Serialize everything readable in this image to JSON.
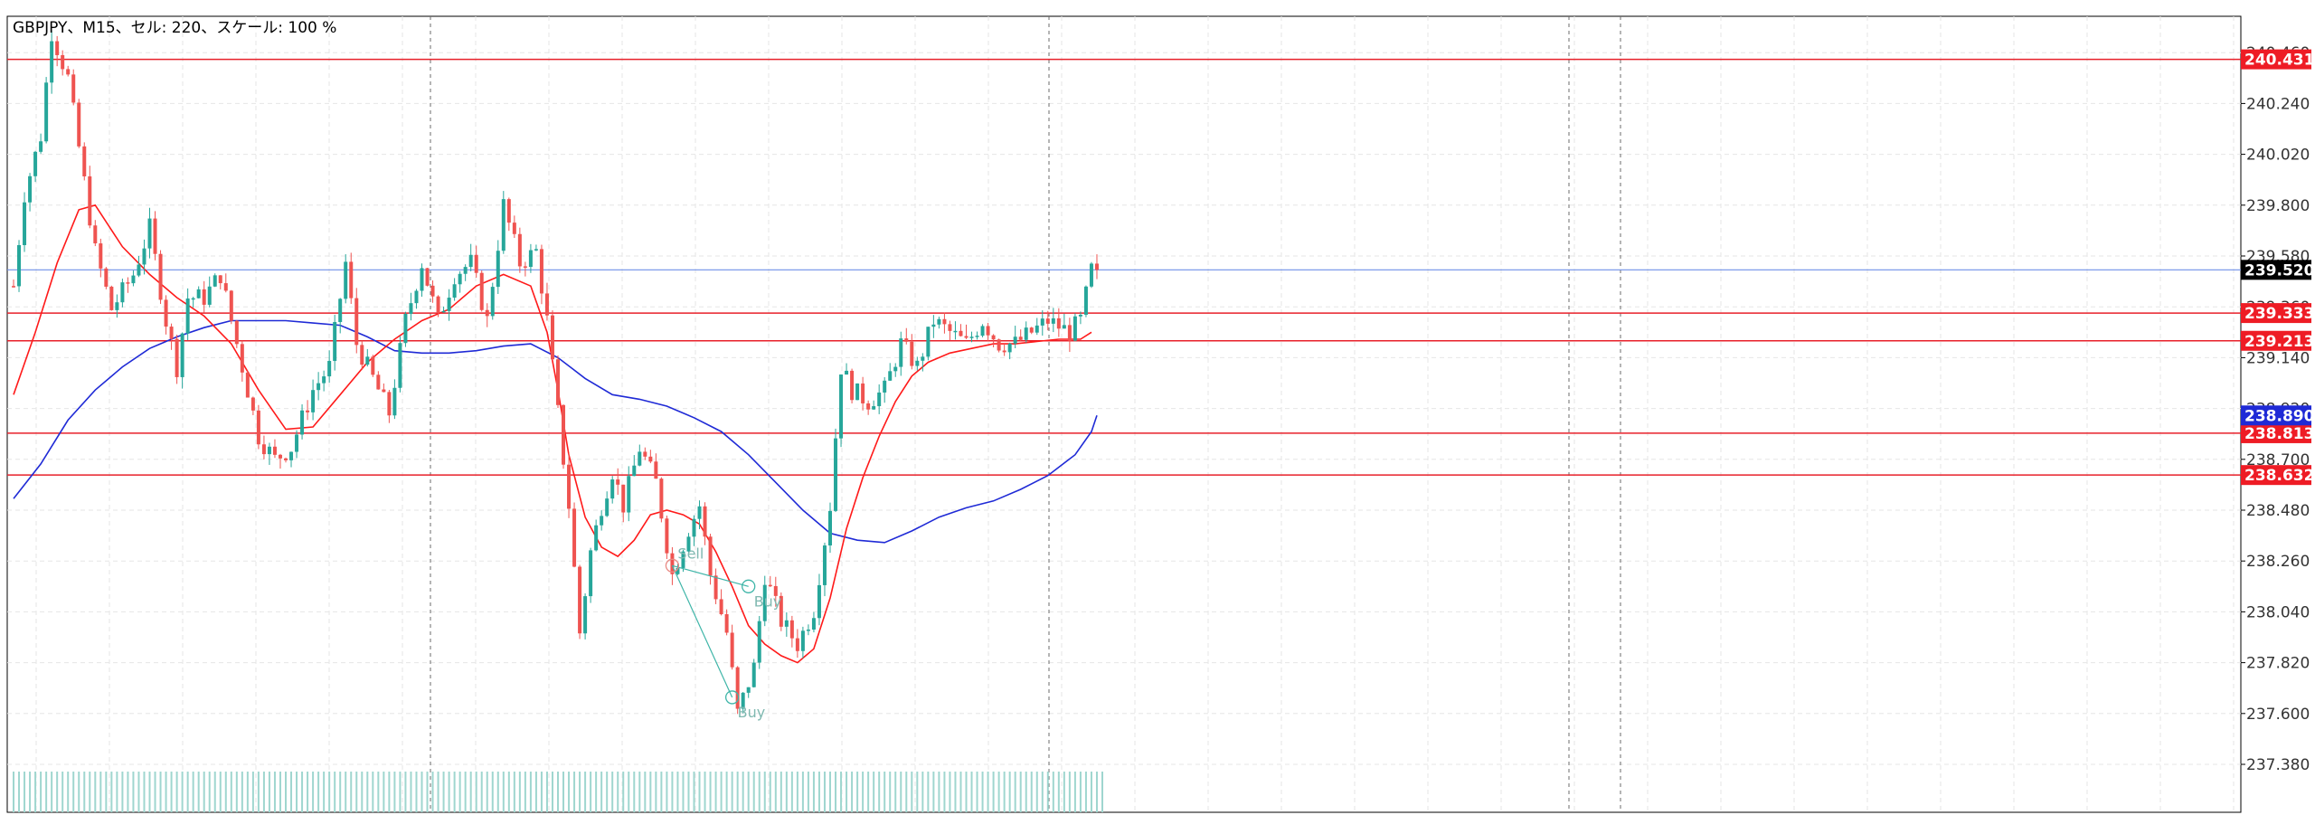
{
  "header": {
    "title": "GBPJPY、M15、セル: 220、スケール: 100 %"
  },
  "colors": {
    "bull": "#26a69a",
    "bear": "#ef5350",
    "ma_fast": "#ff1a1a",
    "ma_slow": "#1f2ad6",
    "hline": "#e8202a",
    "bid_line": "#6f8fe8",
    "grid": "#e6e6e6",
    "separator": "#6b6b6b",
    "volume": "#9fd6cf",
    "trade_line": "#3fb5a8"
  },
  "chart_data": {
    "type": "candlestick",
    "symbol": "GBPJPY",
    "timeframe": "M15",
    "ylim": [
      237.28,
      240.5
    ],
    "y_ticks": [
      "240.460",
      "240.240",
      "240.020",
      "239.800",
      "239.580",
      "239.360",
      "239.140",
      "238.920",
      "238.700",
      "238.480",
      "238.260",
      "238.040",
      "237.820",
      "237.600",
      "237.380"
    ],
    "horizontal_levels": [
      {
        "label": "240.431",
        "value": 240.431,
        "color": "#e8202a"
      },
      {
        "label": "239.333",
        "value": 239.333,
        "color": "#e8202a"
      },
      {
        "label": "239.213",
        "value": 239.213,
        "color": "#e8202a"
      },
      {
        "label": "238.813",
        "value": 238.813,
        "color": "#e8202a"
      },
      {
        "label": "238.632",
        "value": 238.632,
        "color": "#e8202a"
      }
    ],
    "bid": {
      "label": "239.520",
      "value": 239.52
    },
    "ma_slow_last": {
      "label": "238.890",
      "value": 238.89
    },
    "trades": [
      {
        "label": "Sell",
        "bar": 121,
        "price": 238.24
      },
      {
        "label": "Buy",
        "bar": 135,
        "price": 238.15
      },
      {
        "label": "Buy",
        "bar": 132,
        "price": 237.67
      }
    ],
    "anchors": [
      [
        0,
        239.45
      ],
      [
        2,
        239.85
      ],
      [
        5,
        240.1
      ],
      [
        7,
        240.55
      ],
      [
        10,
        240.35
      ],
      [
        12,
        240.05
      ],
      [
        15,
        239.6
      ],
      [
        18,
        239.35
      ],
      [
        22,
        239.5
      ],
      [
        25,
        239.7
      ],
      [
        28,
        239.3
      ],
      [
        30,
        239.1
      ],
      [
        32,
        239.4
      ],
      [
        35,
        239.4
      ],
      [
        38,
        239.5
      ],
      [
        42,
        239.1
      ],
      [
        45,
        238.8
      ],
      [
        48,
        238.7
      ],
      [
        51,
        238.75
      ],
      [
        55,
        239.0
      ],
      [
        58,
        239.1
      ],
      [
        61,
        239.55
      ],
      [
        63,
        239.2
      ],
      [
        66,
        239.05
      ],
      [
        69,
        238.9
      ],
      [
        72,
        239.3
      ],
      [
        75,
        239.55
      ],
      [
        78,
        239.3
      ],
      [
        81,
        239.5
      ],
      [
        84,
        239.55
      ],
      [
        87,
        239.3
      ],
      [
        90,
        239.8
      ],
      [
        93,
        239.55
      ],
      [
        96,
        239.6
      ],
      [
        98,
        239.3
      ],
      [
        100,
        238.9
      ],
      [
        102,
        238.5
      ],
      [
        104,
        237.95
      ],
      [
        106,
        238.3
      ],
      [
        108,
        238.5
      ],
      [
        110,
        238.65
      ],
      [
        112,
        238.5
      ],
      [
        115,
        238.75
      ],
      [
        118,
        238.6
      ],
      [
        121,
        238.2
      ],
      [
        124,
        238.4
      ],
      [
        126,
        238.5
      ],
      [
        128,
        238.2
      ],
      [
        131,
        237.95
      ],
      [
        133,
        237.6
      ],
      [
        136,
        237.8
      ],
      [
        138,
        238.2
      ],
      [
        141,
        238.0
      ],
      [
        144,
        237.9
      ],
      [
        147,
        238.05
      ],
      [
        150,
        238.5
      ],
      [
        152,
        239.1
      ],
      [
        154,
        239.0
      ],
      [
        157,
        238.95
      ],
      [
        160,
        239.0
      ],
      [
        163,
        239.2
      ],
      [
        166,
        239.1
      ],
      [
        169,
        239.3
      ],
      [
        172,
        239.25
      ],
      [
        175,
        239.2
      ],
      [
        178,
        239.3
      ],
      [
        181,
        239.2
      ],
      [
        184,
        239.2
      ],
      [
        187,
        239.25
      ],
      [
        190,
        239.3
      ],
      [
        194,
        239.25
      ],
      [
        196,
        239.3
      ],
      [
        198,
        239.52
      ]
    ],
    "ma_fast": [
      [
        0,
        238.98
      ],
      [
        4,
        239.25
      ],
      [
        8,
        239.55
      ],
      [
        12,
        239.78
      ],
      [
        15,
        239.8
      ],
      [
        20,
        239.62
      ],
      [
        25,
        239.5
      ],
      [
        30,
        239.4
      ],
      [
        35,
        239.32
      ],
      [
        40,
        239.2
      ],
      [
        45,
        239.0
      ],
      [
        50,
        238.83
      ],
      [
        55,
        238.84
      ],
      [
        60,
        238.98
      ],
      [
        65,
        239.12
      ],
      [
        70,
        239.22
      ],
      [
        75,
        239.3
      ],
      [
        80,
        239.35
      ],
      [
        85,
        239.45
      ],
      [
        90,
        239.5
      ],
      [
        95,
        239.45
      ],
      [
        98,
        239.25
      ],
      [
        100,
        239.0
      ],
      [
        102,
        238.72
      ],
      [
        105,
        238.45
      ],
      [
        108,
        238.32
      ],
      [
        111,
        238.28
      ],
      [
        114,
        238.35
      ],
      [
        117,
        238.46
      ],
      [
        120,
        238.48
      ],
      [
        123,
        238.46
      ],
      [
        126,
        238.42
      ],
      [
        129,
        238.3
      ],
      [
        132,
        238.15
      ],
      [
        135,
        237.98
      ],
      [
        138,
        237.9
      ],
      [
        141,
        237.85
      ],
      [
        144,
        237.82
      ],
      [
        147,
        237.88
      ],
      [
        150,
        238.1
      ],
      [
        153,
        238.4
      ],
      [
        156,
        238.62
      ],
      [
        159,
        238.8
      ],
      [
        162,
        238.95
      ],
      [
        165,
        239.06
      ],
      [
        168,
        239.12
      ],
      [
        172,
        239.16
      ],
      [
        176,
        239.18
      ],
      [
        180,
        239.2
      ],
      [
        184,
        239.2
      ],
      [
        188,
        239.21
      ],
      [
        192,
        239.22
      ],
      [
        196,
        239.22
      ],
      [
        198,
        239.25
      ]
    ],
    "ma_slow": [
      [
        0,
        238.53
      ],
      [
        5,
        238.68
      ],
      [
        10,
        238.87
      ],
      [
        15,
        239.0
      ],
      [
        20,
        239.1
      ],
      [
        25,
        239.18
      ],
      [
        30,
        239.23
      ],
      [
        35,
        239.27
      ],
      [
        40,
        239.3
      ],
      [
        45,
        239.3
      ],
      [
        50,
        239.3
      ],
      [
        55,
        239.29
      ],
      [
        60,
        239.28
      ],
      [
        65,
        239.23
      ],
      [
        70,
        239.17
      ],
      [
        75,
        239.16
      ],
      [
        80,
        239.16
      ],
      [
        85,
        239.17
      ],
      [
        90,
        239.19
      ],
      [
        95,
        239.2
      ],
      [
        100,
        239.14
      ],
      [
        105,
        239.05
      ],
      [
        110,
        238.98
      ],
      [
        115,
        238.96
      ],
      [
        120,
        238.93
      ],
      [
        125,
        238.88
      ],
      [
        130,
        238.82
      ],
      [
        135,
        238.72
      ],
      [
        140,
        238.6
      ],
      [
        145,
        238.48
      ],
      [
        150,
        238.38
      ],
      [
        155,
        238.35
      ],
      [
        160,
        238.34
      ],
      [
        165,
        238.39
      ],
      [
        170,
        238.45
      ],
      [
        175,
        238.49
      ],
      [
        180,
        238.52
      ],
      [
        185,
        238.57
      ],
      [
        190,
        238.63
      ],
      [
        195,
        238.72
      ],
      [
        198,
        238.82
      ],
      [
        199,
        238.89
      ]
    ]
  }
}
